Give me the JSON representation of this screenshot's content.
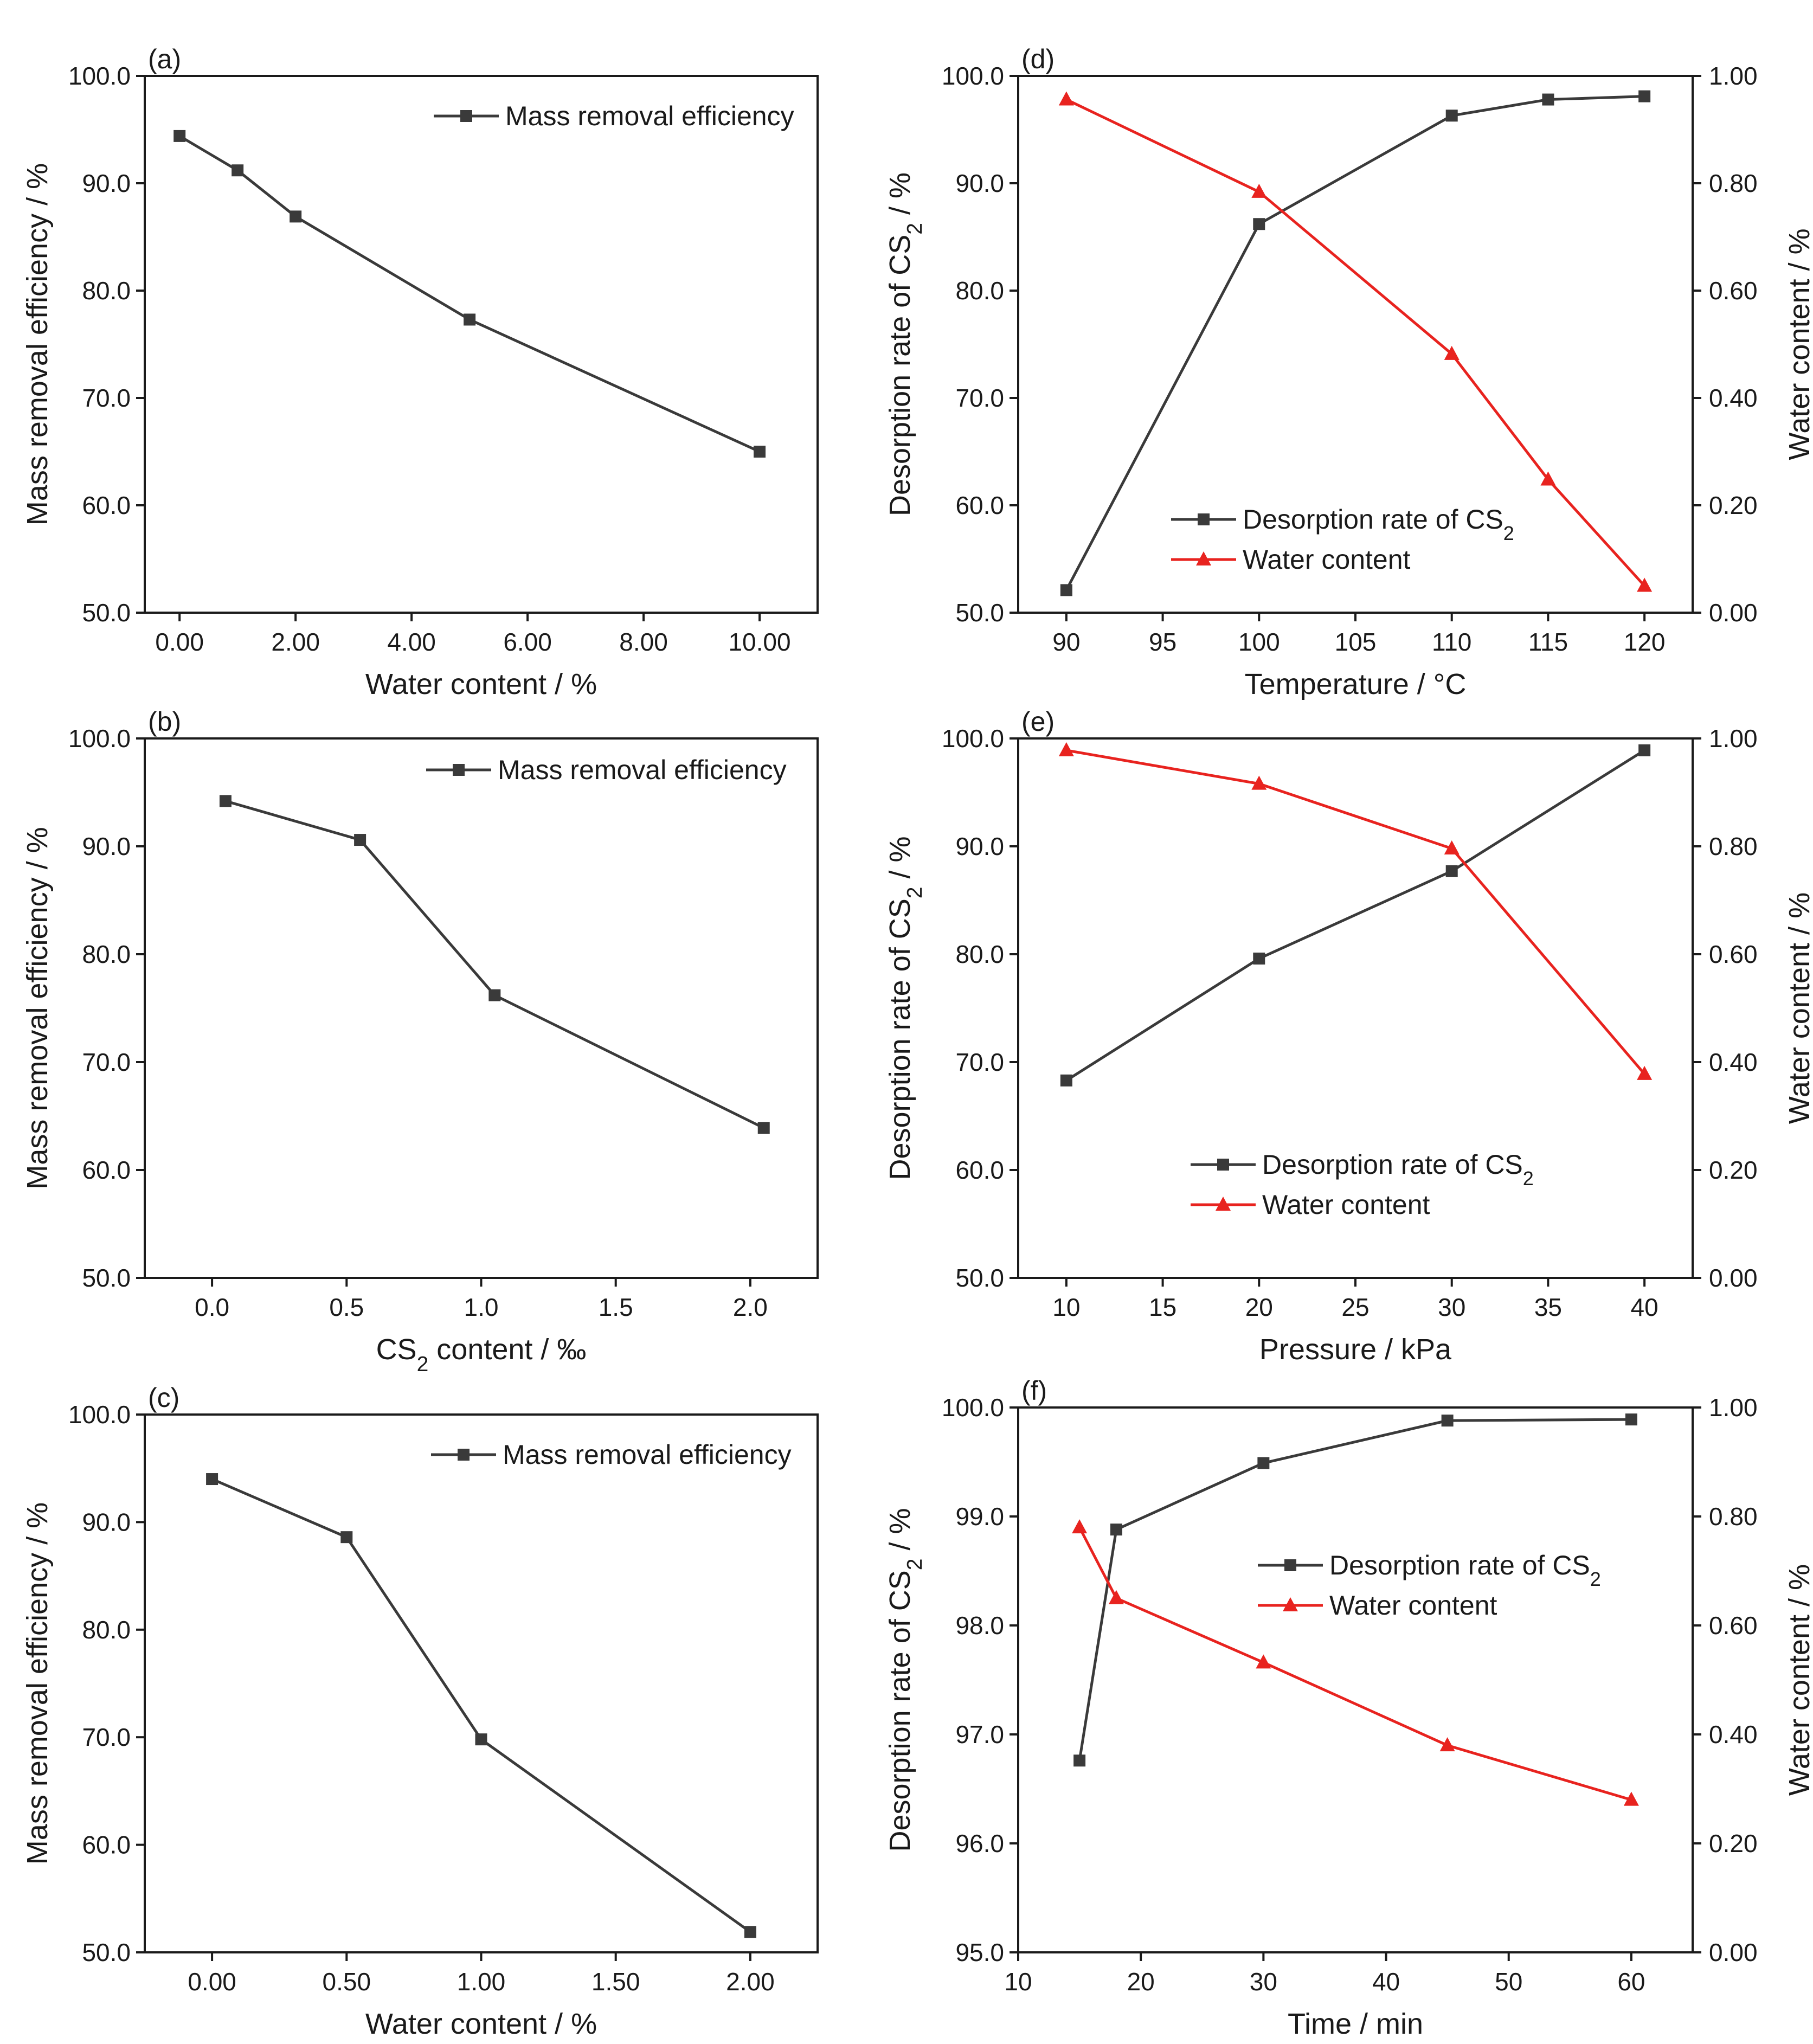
{
  "chart_data": [
    {
      "id": "a",
      "panel_label": "(a)",
      "type": "line",
      "xlabel": "Water content / %",
      "ylabel": "Mass removal efficiency / %",
      "xlim": [
        -0.6,
        11.0
      ],
      "ylim": [
        50.0,
        100.0
      ],
      "xticks": [
        0,
        2,
        4,
        6,
        8,
        10
      ],
      "xtick_labels": [
        "0.00",
        "2.00",
        "4.00",
        "6.00",
        "8.00",
        "10.00"
      ],
      "yticks": [
        50,
        60,
        70,
        80,
        90,
        100
      ],
      "ytick_labels": [
        "50.0",
        "60.0",
        "70.0",
        "80.0",
        "90.0",
        "100.0"
      ],
      "legend_position": "top-right",
      "series": [
        {
          "name": "Mass removal efficiency",
          "axis": "left",
          "marker": "square",
          "color": "#3a3a3a",
          "x": [
            0,
            1,
            2,
            5,
            10
          ],
          "y": [
            94.4,
            91.2,
            86.9,
            77.3,
            65.0
          ]
        }
      ]
    },
    {
      "id": "b",
      "panel_label": "(b)",
      "type": "line",
      "xlabel": "CS₂ content / ‰",
      "ylabel": "Mass removal efficiency / %",
      "xlim": [
        -0.25,
        2.25
      ],
      "ylim": [
        50.0,
        100.0
      ],
      "xticks": [
        0,
        0.5,
        1.0,
        1.5,
        2.0
      ],
      "xtick_labels": [
        "0.0",
        "0.5",
        "1.0",
        "1.5",
        "2.0"
      ],
      "yticks": [
        50,
        60,
        70,
        80,
        90,
        100
      ],
      "ytick_labels": [
        "50.0",
        "60.0",
        "70.0",
        "80.0",
        "90.0",
        "100.0"
      ],
      "legend_position": "top-right",
      "series": [
        {
          "name": "Mass removal efficiency",
          "axis": "left",
          "marker": "square",
          "color": "#3a3a3a",
          "x": [
            0.05,
            0.55,
            1.05,
            2.05
          ],
          "y": [
            94.2,
            90.6,
            76.2,
            63.9
          ]
        }
      ]
    },
    {
      "id": "c",
      "panel_label": "(c)",
      "type": "line",
      "xlabel": "Water content / %",
      "ylabel": "Mass removal efficiency / %",
      "xlim": [
        -0.25,
        2.25
      ],
      "ylim": [
        50.0,
        100.0
      ],
      "xticks": [
        0,
        0.5,
        1.0,
        1.5,
        2.0
      ],
      "xtick_labels": [
        "0.00",
        "0.50",
        "1.00",
        "1.50",
        "2.00"
      ],
      "yticks": [
        50,
        60,
        70,
        80,
        90,
        100
      ],
      "ytick_labels": [
        "50.0",
        "60.0",
        "70.0",
        "80.0",
        "90.0",
        "100.0"
      ],
      "legend_position": "top-right",
      "series": [
        {
          "name": "Mass removal efficiency",
          "axis": "left",
          "marker": "square",
          "color": "#3a3a3a",
          "x": [
            0,
            0.5,
            1.0,
            2.0
          ],
          "y": [
            94.0,
            88.6,
            69.8,
            51.9
          ]
        }
      ]
    },
    {
      "id": "d",
      "panel_label": "(d)",
      "type": "line",
      "xlabel": "Temperature / °C",
      "ylabel": "Desorption rate of CS₂ / %",
      "y2label": "Water content / %",
      "xlim": [
        87.5,
        122.5
      ],
      "ylim": [
        50.0,
        100.0
      ],
      "y2lim": [
        0.0,
        1.0
      ],
      "xticks": [
        90,
        95,
        100,
        105,
        110,
        115,
        120
      ],
      "xtick_labels": [
        "90",
        "95",
        "100",
        "105",
        "110",
        "115",
        "120"
      ],
      "yticks": [
        50,
        60,
        70,
        80,
        90,
        100
      ],
      "ytick_labels": [
        "50.0",
        "60.0",
        "70.0",
        "80.0",
        "90.0",
        "100.0"
      ],
      "y2ticks": [
        0,
        0.2,
        0.4,
        0.6,
        0.8,
        1.0
      ],
      "y2tick_labels": [
        "0.00",
        "0.20",
        "0.40",
        "0.60",
        "0.80",
        "1.00"
      ],
      "legend_position": "bottom-center",
      "series": [
        {
          "name": "Desorption rate of CS₂",
          "axis": "left",
          "marker": "square",
          "color": "#3a3a3a",
          "x": [
            90,
            100,
            110,
            115,
            120
          ],
          "y": [
            52.1,
            86.2,
            96.3,
            97.8,
            98.1
          ]
        },
        {
          "name": "Water content",
          "axis": "right",
          "marker": "triangle",
          "color": "#e8231f",
          "x": [
            90,
            100,
            110,
            115,
            120
          ],
          "y": [
            0.956,
            0.784,
            0.482,
            0.248,
            0.05
          ]
        }
      ]
    },
    {
      "id": "e",
      "panel_label": "(e)",
      "type": "line",
      "xlabel": "Pressure / kPa",
      "ylabel": "Desorption rate of CS₂ / %",
      "y2label": "Water content / %",
      "xlim": [
        7.5,
        42.5
      ],
      "ylim": [
        50.0,
        100.0
      ],
      "y2lim": [
        0.0,
        1.0
      ],
      "xticks": [
        10,
        15,
        20,
        25,
        30,
        35,
        40
      ],
      "xtick_labels": [
        "10",
        "15",
        "20",
        "25",
        "30",
        "35",
        "40"
      ],
      "yticks": [
        50,
        60,
        70,
        80,
        90,
        100
      ],
      "ytick_labels": [
        "50.0",
        "60.0",
        "70.0",
        "80.0",
        "90.0",
        "100.0"
      ],
      "y2ticks": [
        0,
        0.2,
        0.4,
        0.6,
        0.8,
        1.0
      ],
      "y2tick_labels": [
        "0.00",
        "0.20",
        "0.40",
        "0.60",
        "0.80",
        "1.00"
      ],
      "legend_position": "bottom-center",
      "series": [
        {
          "name": "Desorption rate of CS₂",
          "axis": "left",
          "marker": "square",
          "color": "#3a3a3a",
          "x": [
            10,
            20,
            30,
            40
          ],
          "y": [
            68.3,
            79.6,
            87.7,
            98.9
          ]
        },
        {
          "name": "Water content",
          "axis": "right",
          "marker": "triangle",
          "color": "#e8231f",
          "x": [
            10,
            20,
            30,
            40
          ],
          "y": [
            0.978,
            0.916,
            0.796,
            0.378
          ]
        }
      ]
    },
    {
      "id": "f",
      "panel_label": "(f)",
      "type": "line",
      "xlabel": "Time / min",
      "ylabel": "Desorption rate of CS₂ / %",
      "y2label": "Water content / %",
      "xlim": [
        10,
        65
      ],
      "ylim": [
        95.0,
        100.0
      ],
      "y2lim": [
        0.0,
        1.0
      ],
      "xticks": [
        10,
        20,
        30,
        40,
        50,
        60
      ],
      "xtick_labels": [
        "10",
        "20",
        "30",
        "40",
        "50",
        "60"
      ],
      "yticks": [
        95,
        96,
        97,
        98,
        99,
        100
      ],
      "ytick_labels": [
        "95.0",
        "96.0",
        "97.0",
        "98.0",
        "99.0",
        "100.0"
      ],
      "y2ticks": [
        0,
        0.2,
        0.4,
        0.6,
        0.8,
        1.0
      ],
      "y2tick_labels": [
        "0.00",
        "0.20",
        "0.40",
        "0.60",
        "0.80",
        "1.00"
      ],
      "legend_position": "center-right",
      "series": [
        {
          "name": "Desorption rate of CS₂",
          "axis": "left",
          "marker": "square",
          "color": "#3a3a3a",
          "x": [
            15,
            18,
            30,
            45,
            60
          ],
          "y": [
            96.76,
            98.88,
            99.49,
            99.88,
            99.89
          ]
        },
        {
          "name": "Water content",
          "axis": "right",
          "marker": "triangle",
          "color": "#e8231f",
          "x": [
            15,
            18,
            30,
            45,
            60
          ],
          "y": [
            0.78,
            0.65,
            0.532,
            0.38,
            0.28
          ]
        }
      ]
    }
  ]
}
